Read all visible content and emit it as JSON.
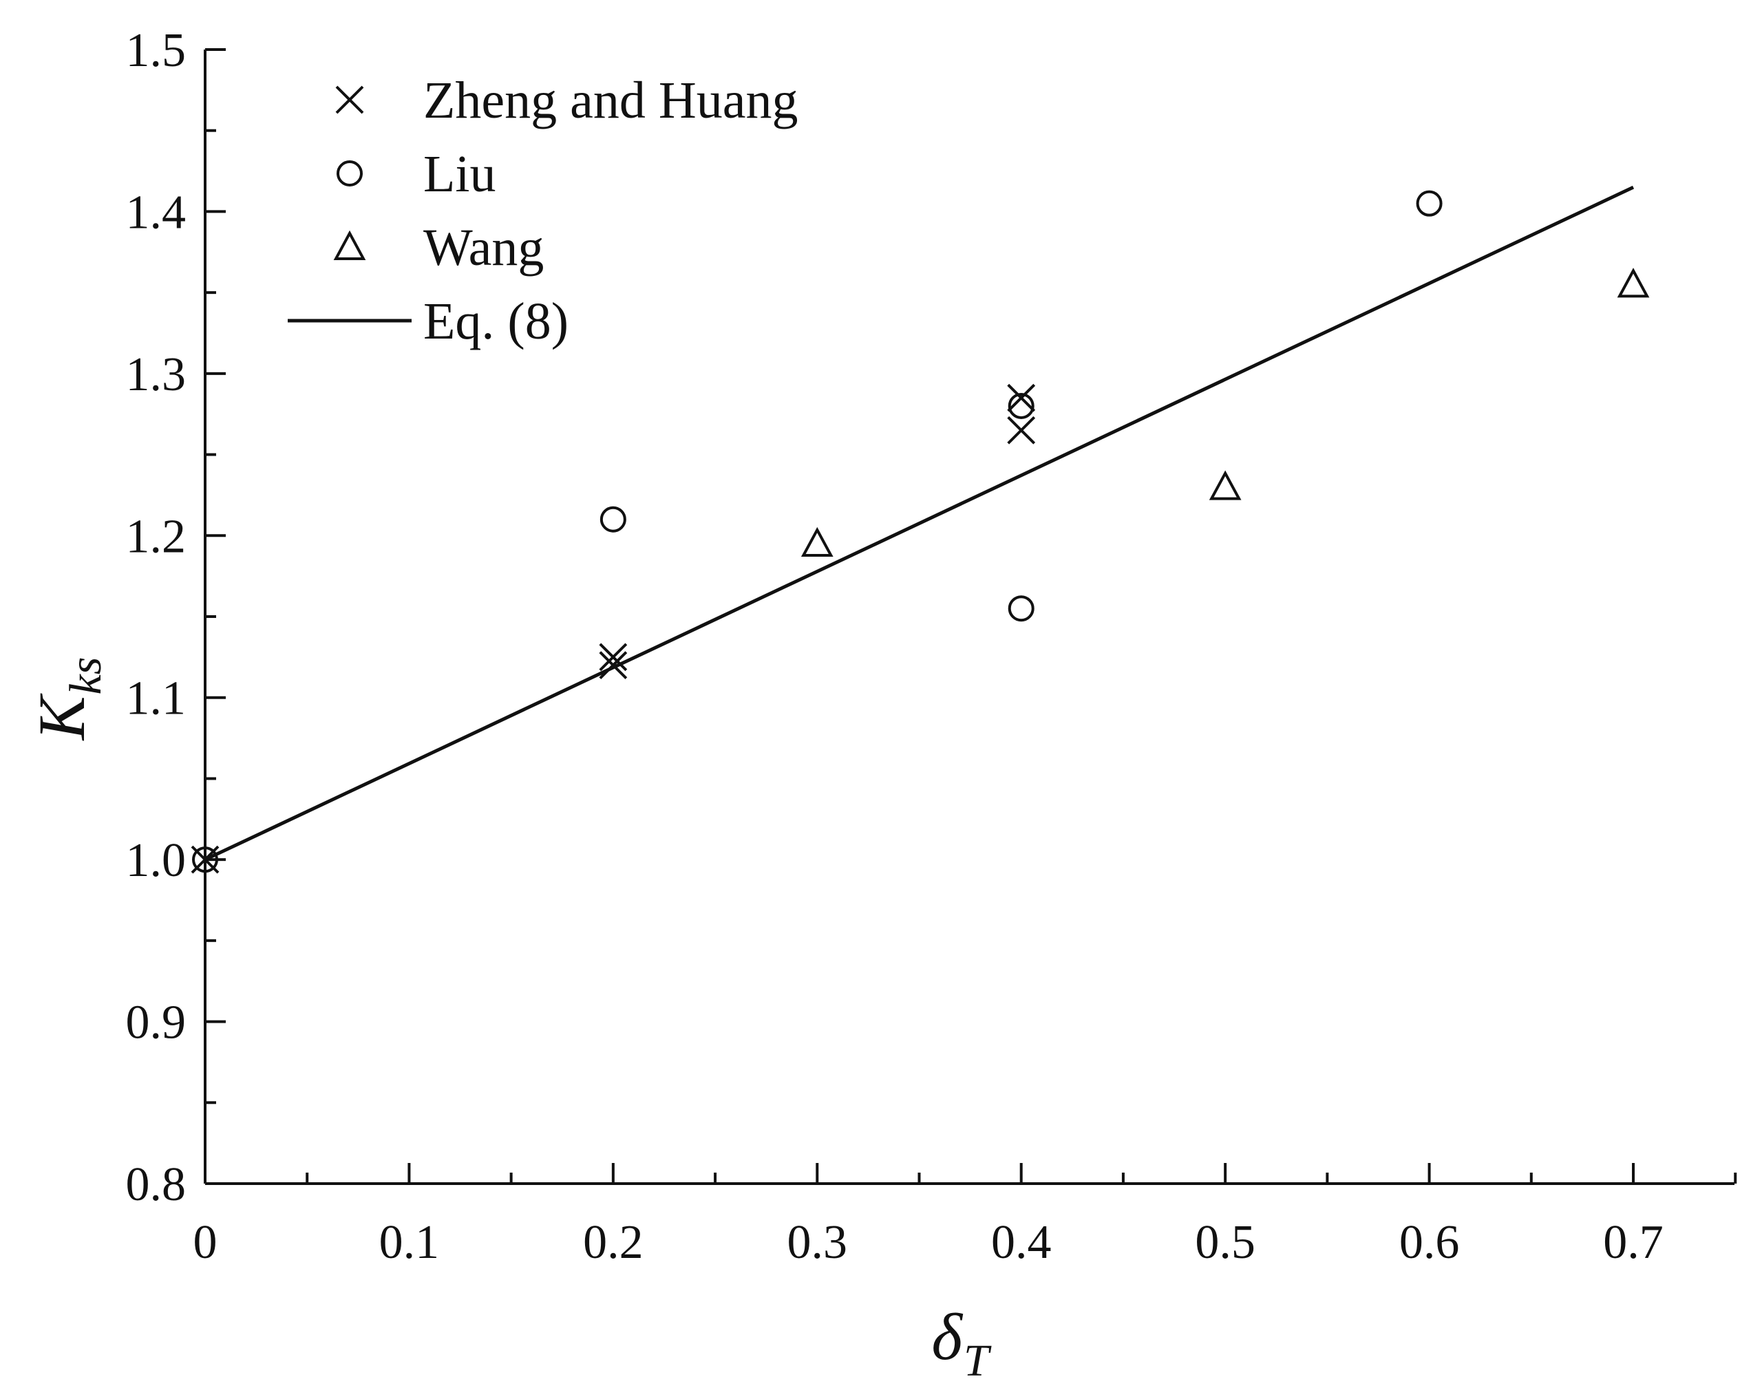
{
  "chart_data": {
    "type": "scatter",
    "xlabel": "δ",
    "xlabel_subscript": "T",
    "ylabel": "K",
    "ylabel_subscript": "ks",
    "xlim": [
      0,
      0.75
    ],
    "ylim": [
      0.8,
      1.5
    ],
    "xticks": [
      0,
      0.1,
      0.2,
      0.3,
      0.4,
      0.5,
      0.6,
      0.7
    ],
    "xtick_labels": [
      "0",
      "0.1",
      "0.2",
      "0.3",
      "0.4",
      "0.5",
      "0.6",
      "0.7"
    ],
    "yticks": [
      0.8,
      0.9,
      1.0,
      1.1,
      1.2,
      1.3,
      1.4,
      1.5
    ],
    "ytick_labels": [
      "0.8",
      "0.9",
      "1.0",
      "1.1",
      "1.2",
      "1.3",
      "1.4",
      "1.5"
    ],
    "grid": false,
    "legend_position": "top-left",
    "series": [
      {
        "name": "Zheng and Huang",
        "marker": "x",
        "points": [
          [
            0,
            1.0
          ],
          [
            0.2,
            1.12
          ],
          [
            0.2,
            1.125
          ],
          [
            0.4,
            1.285
          ],
          [
            0.4,
            1.265
          ]
        ]
      },
      {
        "name": "Liu",
        "marker": "circle",
        "points": [
          [
            0,
            1.0
          ],
          [
            0.2,
            1.21
          ],
          [
            0.4,
            1.28
          ],
          [
            0.4,
            1.155
          ],
          [
            0.6,
            1.405
          ]
        ]
      },
      {
        "name": "Wang",
        "marker": "triangle",
        "points": [
          [
            0.3,
            1.195
          ],
          [
            0.5,
            1.23
          ],
          [
            0.7,
            1.355
          ]
        ]
      },
      {
        "name": "Eq. (8)",
        "marker": "line",
        "points": [
          [
            0,
            1.0
          ],
          [
            0.7,
            1.415
          ]
        ]
      }
    ]
  }
}
